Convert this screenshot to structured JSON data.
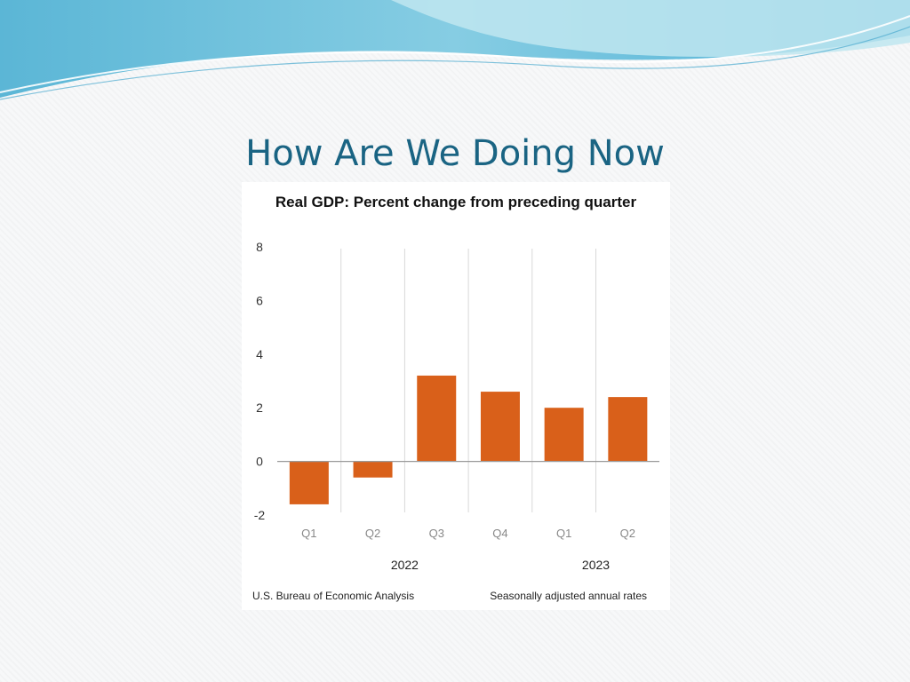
{
  "slide": {
    "title": "How Are We Doing Now"
  },
  "colors": {
    "bar": "#d9601a",
    "title": "#1a6483",
    "banner_light": "#b5e2ec",
    "banner_dark": "#39a6cd"
  },
  "chart_data": {
    "type": "bar",
    "title": "Real GDP:  Percent change from preceding quarter",
    "categories": [
      "Q1",
      "Q2",
      "Q3",
      "Q4",
      "Q1",
      "Q2"
    ],
    "values": [
      -1.6,
      -0.6,
      3.2,
      2.6,
      2.0,
      2.4
    ],
    "year_groups": [
      {
        "label": "2022",
        "from": 0,
        "to": 3
      },
      {
        "label": "2023",
        "from": 4,
        "to": 5
      }
    ],
    "yticks": [
      "8",
      "6",
      "4",
      "2",
      "0",
      "-2"
    ],
    "ylim": [
      -2,
      8
    ],
    "xlabel": "",
    "ylabel": "",
    "source": "U.S. Bureau of Economic Analysis",
    "footnote": "Seasonally adjusted annual rates"
  }
}
